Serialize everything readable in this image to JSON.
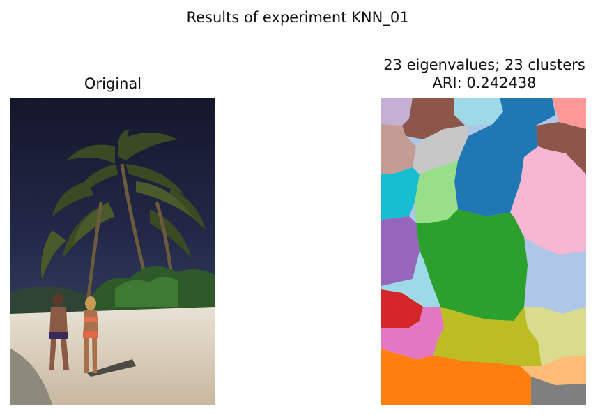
{
  "figure": {
    "suptitle": "Results of experiment KNN_01",
    "left_title": "Original",
    "right_title_line1": "23 eigenvalues; 23 clusters",
    "right_title_line2": "ARI: 0.242438"
  },
  "segmentation": {
    "eigenvalues": 23,
    "clusters": 23,
    "ari": 0.242438
  },
  "colors": {
    "background": "#ffffff",
    "cluster_palette": [
      "#c5b0d5",
      "#8c564b",
      "#9edae5",
      "#1f77b4",
      "#ff9896",
      "#c49c94",
      "#c7c7c7",
      "#17becf",
      "#98df8a",
      "#f7b6d2",
      "#9467bd",
      "#2ca02c",
      "#aec7e8",
      "#d62728",
      "#e377c2",
      "#bcbd22",
      "#dbdb8d",
      "#ff7f0e",
      "#ffbb78",
      "#7f7f7f"
    ]
  }
}
